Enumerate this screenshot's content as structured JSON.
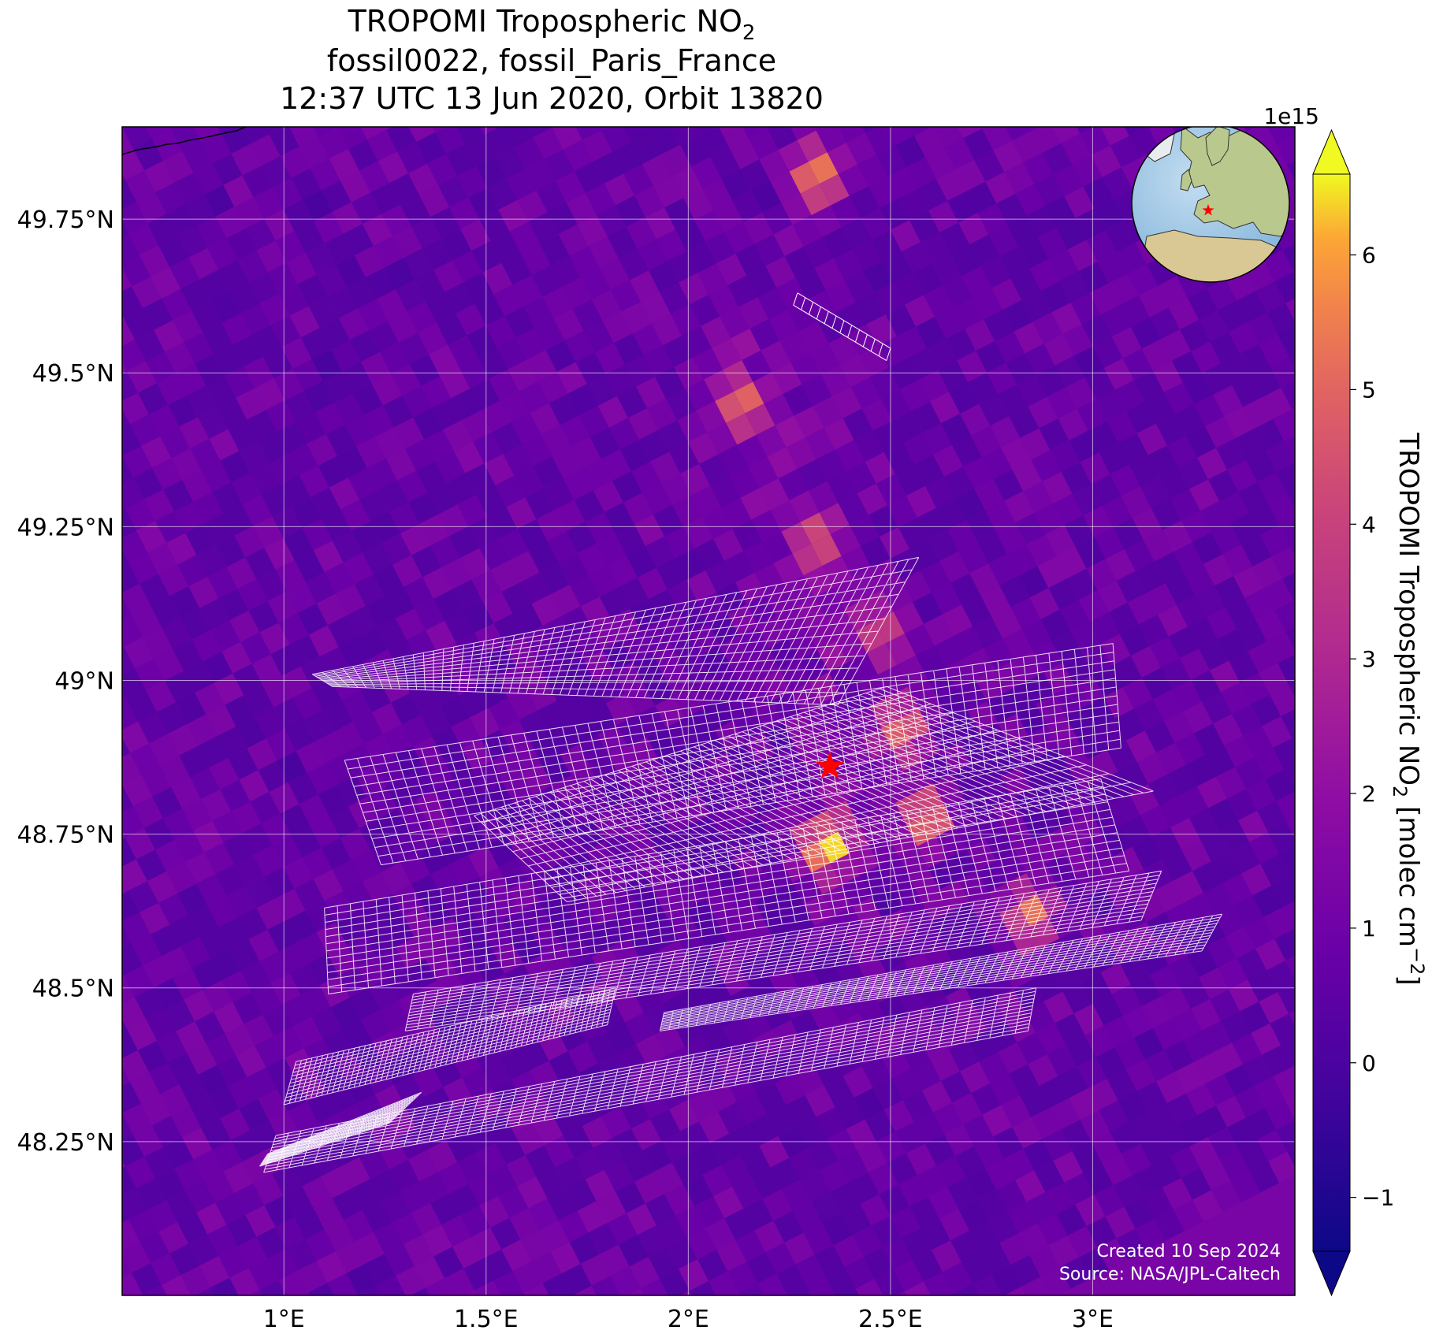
{
  "title": {
    "line1": "TROPOMI Tropospheric NO",
    "line1_sub": "2",
    "line2": "fossil0022, fossil_Paris_France",
    "line3": "12:37 UTC 13 Jun 2020, Orbit 13820"
  },
  "map": {
    "lon_range": [
      0.6,
      3.5
    ],
    "lat_range": [
      48.0,
      49.9
    ],
    "lon_ticks": [
      {
        "value": 1.0,
        "label": "1°E"
      },
      {
        "value": 1.5,
        "label": "1.5°E"
      },
      {
        "value": 2.0,
        "label": "2°E"
      },
      {
        "value": 2.5,
        "label": "2.5°E"
      },
      {
        "value": 3.0,
        "label": "3°E"
      }
    ],
    "lat_ticks": [
      {
        "value": 48.25,
        "label": "48.25°N"
      },
      {
        "value": 48.5,
        "label": "48.5°N"
      },
      {
        "value": 48.75,
        "label": "48.75°N"
      },
      {
        "value": 49.0,
        "label": "49°N"
      },
      {
        "value": 49.25,
        "label": "49.25°N"
      },
      {
        "value": 49.5,
        "label": "49.5°N"
      },
      {
        "value": 49.75,
        "label": "49.75°N"
      }
    ],
    "gridlines": true,
    "target": {
      "name": "fossil_Paris_France",
      "lon": 2.35,
      "lat": 48.86,
      "marker": "red-star"
    },
    "target_color": "#ff0000",
    "inset_globe": {
      "position": "top-right",
      "land_color": "#b9c98e",
      "ocean_color": "#9cc7e6"
    }
  },
  "colorbar": {
    "label_main": "TROPOMI Tropospheric NO",
    "label_sub": "2",
    "label_units": " [molec cm",
    "label_exp": "−2",
    "label_close": "]",
    "scale_text": "1e15",
    "range": [
      -1.4,
      6.6
    ],
    "extend": "both",
    "colormap": "plasma",
    "ticks": [
      {
        "value": -1,
        "label": "−1"
      },
      {
        "value": 0,
        "label": "0"
      },
      {
        "value": 1,
        "label": "1"
      },
      {
        "value": 2,
        "label": "2"
      },
      {
        "value": 3,
        "label": "3"
      },
      {
        "value": 4,
        "label": "4"
      },
      {
        "value": 5,
        "label": "5"
      },
      {
        "value": 6,
        "label": "6"
      }
    ]
  },
  "credits": {
    "line1": "Created 10 Sep 2024",
    "line2": "Source: NASA/JPL-Caltech"
  },
  "chart_data": {
    "type": "heatmap",
    "variable": "TROPOMI Tropospheric NO2",
    "units": "molec cm^-2 (x 1e15)",
    "value_range": [
      -1.4,
      6.6
    ],
    "typical_background": [
      0,
      1.5
    ],
    "hotspots": [
      {
        "lon": 2.28,
        "lat": 49.83,
        "value": 5.8
      },
      {
        "lon": 2.3,
        "lat": 48.74,
        "value": 6.3
      },
      {
        "lon": 2.55,
        "lat": 48.79,
        "value": 5.5
      },
      {
        "lon": 2.49,
        "lat": 48.93,
        "value": 5.0
      },
      {
        "lon": 2.81,
        "lat": 48.63,
        "value": 5.3
      },
      {
        "lon": 2.09,
        "lat": 49.46,
        "value": 4.6
      },
      {
        "lon": 2.28,
        "lat": 49.24,
        "value": 4.4
      },
      {
        "lon": 2.44,
        "lat": 49.09,
        "value": 4.2
      }
    ]
  }
}
